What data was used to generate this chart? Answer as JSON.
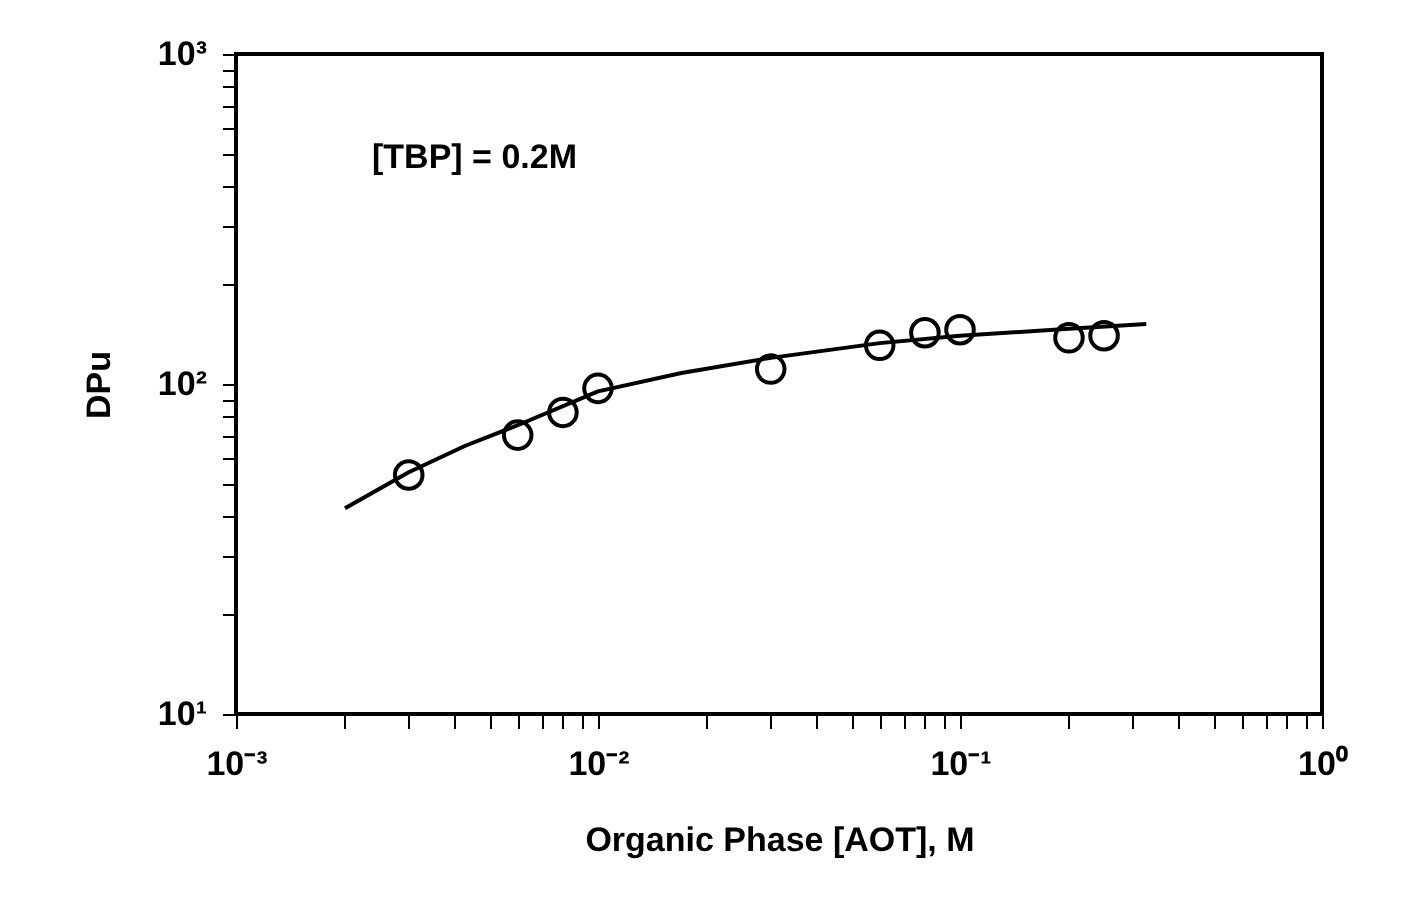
{
  "chart_data": {
    "type": "scatter",
    "xlabel": "Organic Phase [AOT], M",
    "ylabel": "DPu",
    "log": "xy",
    "annotations": [
      "[TBP] = 0.2M"
    ],
    "xlim": [
      0.001,
      1
    ],
    "ylim": [
      10,
      1000
    ],
    "xticks": [
      {
        "value": 0.001,
        "label": "10⁻³"
      },
      {
        "value": 0.002,
        "label": null
      },
      {
        "value": 0.003,
        "label": null
      },
      {
        "value": 0.004,
        "label": null
      },
      {
        "value": 0.005,
        "label": null
      },
      {
        "value": 0.006,
        "label": null
      },
      {
        "value": 0.007,
        "label": null
      },
      {
        "value": 0.008,
        "label": null
      },
      {
        "value": 0.009,
        "label": null
      },
      {
        "value": 0.01,
        "label": "10⁻²"
      },
      {
        "value": 0.02,
        "label": null
      },
      {
        "value": 0.03,
        "label": null
      },
      {
        "value": 0.04,
        "label": null
      },
      {
        "value": 0.05,
        "label": null
      },
      {
        "value": 0.06,
        "label": null
      },
      {
        "value": 0.07,
        "label": null
      },
      {
        "value": 0.08,
        "label": null
      },
      {
        "value": 0.09,
        "label": null
      },
      {
        "value": 0.1,
        "label": "10⁻¹"
      },
      {
        "value": 0.2,
        "label": null
      },
      {
        "value": 0.3,
        "label": null
      },
      {
        "value": 0.4,
        "label": null
      },
      {
        "value": 0.5,
        "label": null
      },
      {
        "value": 0.6,
        "label": null
      },
      {
        "value": 0.7,
        "label": null
      },
      {
        "value": 0.8,
        "label": null
      },
      {
        "value": 0.9,
        "label": null
      },
      {
        "value": 1,
        "label": "10⁰"
      }
    ],
    "yticks": [
      {
        "value": 10,
        "label": "10¹"
      },
      {
        "value": 20,
        "label": null
      },
      {
        "value": 30,
        "label": null
      },
      {
        "value": 40,
        "label": null
      },
      {
        "value": 50,
        "label": null
      },
      {
        "value": 60,
        "label": null
      },
      {
        "value": 70,
        "label": null
      },
      {
        "value": 80,
        "label": null
      },
      {
        "value": 90,
        "label": null
      },
      {
        "value": 100,
        "label": "10²"
      },
      {
        "value": 200,
        "label": null
      },
      {
        "value": 300,
        "label": null
      },
      {
        "value": 400,
        "label": null
      },
      {
        "value": 500,
        "label": null
      },
      {
        "value": 600,
        "label": null
      },
      {
        "value": 700,
        "label": null
      },
      {
        "value": 800,
        "label": null
      },
      {
        "value": 900,
        "label": null
      },
      {
        "value": 1000,
        "label": "10³"
      }
    ],
    "series": [
      {
        "type": "line",
        "color": "#000000",
        "marker": "none",
        "line_style": "solid",
        "x": [
          0.002,
          0.003,
          0.0043,
          0.006,
          0.01,
          0.017,
          0.03,
          0.06,
          0.1,
          0.2,
          0.327
        ],
        "values": [
          42,
          54,
          65,
          75,
          95,
          108,
          120,
          133,
          140,
          147,
          152
        ]
      },
      {
        "type": "scatter",
        "color": "#000000",
        "marker": "circle",
        "x": [
          0.003,
          0.006,
          0.008,
          0.01,
          0.03,
          0.06,
          0.08,
          0.1,
          0.2,
          0.25
        ],
        "values": [
          53,
          70,
          82,
          97,
          111,
          131,
          143,
          146,
          138,
          140
        ]
      }
    ]
  }
}
